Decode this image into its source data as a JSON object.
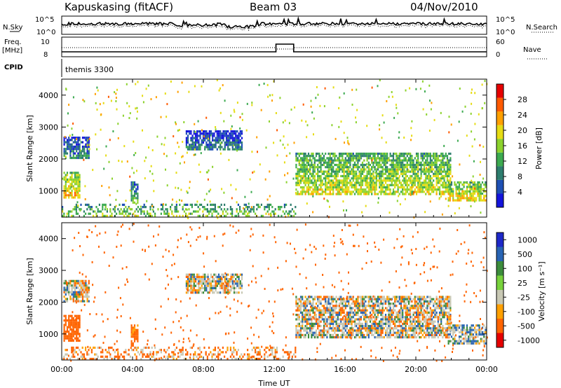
{
  "header": {
    "station": "Kapuskasing (fitACF)",
    "beam": "Beam 03",
    "date": "04/Nov/2010"
  },
  "strip_labels": {
    "nsky": "N.Sky",
    "nsearch": "N.Search",
    "freq_line1": "Freq.",
    "freq_line2": "[MHz]",
    "nave": "Nave",
    "cpid": "CPID",
    "cpid_value": "themis 3300",
    "noise_ticks": [
      "10^5",
      "10^0"
    ],
    "freq_ticks": [
      "10",
      "8"
    ],
    "nave_ticks": [
      "60",
      "0"
    ]
  },
  "colors": {
    "power": [
      "#1414dc",
      "#1e50b4",
      "#2d7d6e",
      "#3caa50",
      "#8cd22d",
      "#e6dc14",
      "#ffa000",
      "#ff5a00",
      "#e60000"
    ],
    "velocity": [
      "#1e28c8",
      "#2864b4",
      "#3c8c3c",
      "#78d23c",
      "#c8c8b4",
      "#ffa000",
      "#ff6400",
      "#e60000"
    ]
  },
  "chart_data": [
    {
      "type": "heatmap",
      "name": "power-panel",
      "ylabel": "Slant Range [km]",
      "ylim": [
        180,
        4500
      ],
      "yticks": [
        "1000",
        "2000",
        "3000",
        "4000"
      ],
      "xlim": [
        0,
        24
      ],
      "colorbar_label": "Power [dB]",
      "colorbar_ticks": [
        "4",
        "8",
        "12",
        "16",
        "20",
        "24",
        "28"
      ],
      "colorbar_range": [
        0,
        30
      ],
      "regions": [
        {
          "t0": 0.1,
          "t1": 1.0,
          "r0": 800,
          "r1": 1600,
          "v": 18
        },
        {
          "t0": 0.1,
          "t1": 1.5,
          "r0": 2000,
          "r1": 2700,
          "v": 5
        },
        {
          "t0": 3.9,
          "t1": 4.3,
          "r0": 600,
          "r1": 1300,
          "v": 9
        },
        {
          "t0": 7.0,
          "t1": 10.2,
          "r0": 2300,
          "r1": 2900,
          "v": 4
        },
        {
          "t0": 13.2,
          "t1": 22.0,
          "r0": 900,
          "r1": 2200,
          "v": 14
        },
        {
          "t0": 21.8,
          "t1": 23.9,
          "r0": 700,
          "r1": 1300,
          "v": 16
        },
        {
          "t0": 0.0,
          "t1": 13.2,
          "r0": 200,
          "r1": 600,
          "v": 12
        }
      ]
    },
    {
      "type": "heatmap",
      "name": "velocity-panel",
      "ylabel": "Slant Range [km]",
      "ylim": [
        180,
        4500
      ],
      "yticks": [
        "1000",
        "2000",
        "3000",
        "4000"
      ],
      "xlim": [
        0,
        24
      ],
      "colorbar_label": "Velocity [m s⁻¹]",
      "colorbar_ticks": [
        "1000",
        "500",
        "100",
        "25",
        "-25",
        "-100",
        "-500",
        "-1000"
      ],
      "regions": [
        {
          "t0": 0.1,
          "t1": 1.0,
          "r0": 800,
          "r1": 1600,
          "v": -300
        },
        {
          "t0": 0.1,
          "t1": 1.5,
          "r0": 2000,
          "r1": 2700,
          "v": 0
        },
        {
          "t0": 3.9,
          "t1": 4.3,
          "r0": 600,
          "r1": 1300,
          "v": -200
        },
        {
          "t0": 7.0,
          "t1": 10.2,
          "r0": 2300,
          "r1": 2900,
          "v": 0
        },
        {
          "t0": 13.2,
          "t1": 22.0,
          "r0": 900,
          "r1": 2200,
          "v": 0
        },
        {
          "t0": 21.8,
          "t1": 23.9,
          "r0": 700,
          "r1": 1300,
          "v": 50
        },
        {
          "t0": 0.0,
          "t1": 13.2,
          "r0": 200,
          "r1": 600,
          "v": -100
        }
      ]
    }
  ],
  "xaxis": {
    "label": "Time UT",
    "ticks": [
      "00:00",
      "04:00",
      "08:00",
      "12:00",
      "16:00",
      "20:00",
      "00:00"
    ],
    "tick_hours": [
      0,
      4,
      8,
      12,
      16,
      20,
      24
    ]
  }
}
